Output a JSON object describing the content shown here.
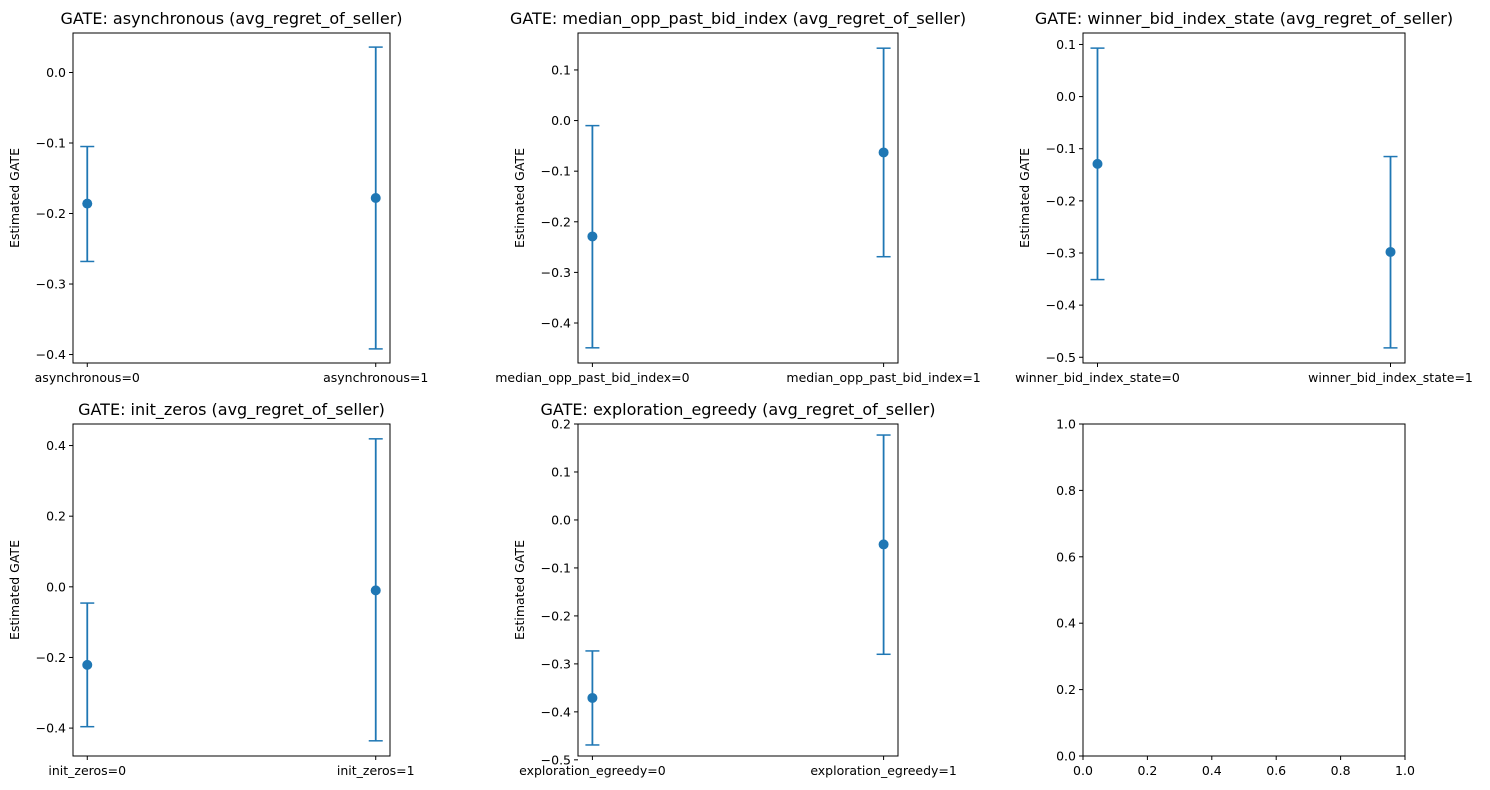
{
  "colors": {
    "marker": "#1f77b4",
    "axis": "#000000",
    "background": "#ffffff"
  },
  "chart_data": [
    {
      "type": "scatter",
      "error_bars": true,
      "title": "GATE: asynchronous (avg_regret_of_seller)",
      "ylabel": "Estimated GATE",
      "categories": [
        "asynchronous=0",
        "asynchronous=1"
      ],
      "values": [
        -0.186,
        -0.178
      ],
      "ci_low": [
        -0.268,
        -0.392
      ],
      "ci_high": [
        -0.105,
        0.036
      ],
      "ylim": [
        -0.412,
        0.056
      ],
      "yticks": [
        0.0,
        -0.1,
        -0.2,
        -0.3,
        -0.4
      ],
      "ytick_labels": [
        "0.0",
        "−0.1",
        "−0.2",
        "−0.3",
        "−0.4"
      ]
    },
    {
      "type": "scatter",
      "error_bars": true,
      "title": "GATE: median_opp_past_bid_index (avg_regret_of_seller)",
      "ylabel": "Estimated GATE",
      "categories": [
        "median_opp_past_bid_index=0",
        "median_opp_past_bid_index=1"
      ],
      "values": [
        -0.229,
        -0.063
      ],
      "ci_low": [
        -0.449,
        -0.269
      ],
      "ci_high": [
        -0.01,
        0.143
      ],
      "ylim": [
        -0.479,
        0.173
      ],
      "yticks": [
        0.1,
        0.0,
        -0.1,
        -0.2,
        -0.3,
        -0.4
      ],
      "ytick_labels": [
        "0.1",
        "0.0",
        "−0.1",
        "−0.2",
        "−0.3",
        "−0.4"
      ]
    },
    {
      "type": "scatter",
      "error_bars": true,
      "title": "GATE: winner_bid_index_state (avg_regret_of_seller)",
      "ylabel": "Estimated GATE",
      "categories": [
        "winner_bid_index_state=0",
        "winner_bid_index_state=1"
      ],
      "values": [
        -0.129,
        -0.298
      ],
      "ci_low": [
        -0.351,
        -0.482
      ],
      "ci_high": [
        0.093,
        -0.115
      ],
      "ylim": [
        -0.511,
        0.122
      ],
      "yticks": [
        0.1,
        0.0,
        -0.1,
        -0.2,
        -0.3,
        -0.4,
        -0.5
      ],
      "ytick_labels": [
        "0.1",
        "0.0",
        "−0.1",
        "−0.2",
        "−0.3",
        "−0.4",
        "−0.5"
      ]
    },
    {
      "type": "scatter",
      "error_bars": true,
      "title": "GATE: init_zeros (avg_regret_of_seller)",
      "ylabel": "Estimated GATE",
      "categories": [
        "init_zeros=0",
        "init_zeros=1"
      ],
      "values": [
        -0.221,
        -0.01
      ],
      "ci_low": [
        -0.396,
        -0.436
      ],
      "ci_high": [
        -0.046,
        0.419
      ],
      "ylim": [
        -0.479,
        0.461
      ],
      "yticks": [
        0.4,
        0.2,
        0.0,
        -0.2,
        -0.4
      ],
      "ytick_labels": [
        "0.4",
        "0.2",
        "0.0",
        "−0.2",
        "−0.4"
      ]
    },
    {
      "type": "scatter",
      "error_bars": true,
      "title": "GATE: exploration_egreedy (avg_regret_of_seller)",
      "ylabel": "Estimated GATE",
      "categories": [
        "exploration_egreedy=0",
        "exploration_egreedy=1"
      ],
      "values": [
        -0.371,
        -0.051
      ],
      "ci_low": [
        -0.469,
        -0.28
      ],
      "ci_high": [
        -0.273,
        0.177
      ],
      "ylim": [
        -0.492,
        0.2
      ],
      "yticks": [
        0.2,
        0.1,
        0.0,
        -0.1,
        -0.2,
        -0.3,
        -0.4,
        -0.5
      ],
      "ytick_labels": [
        "0.2",
        "0.1",
        "0.0",
        "−0.1",
        "−0.2",
        "−0.3",
        "−0.4",
        "−0.5"
      ]
    },
    {
      "type": "scatter",
      "empty": true,
      "title": "",
      "ylabel": "",
      "xlim": [
        0,
        1
      ],
      "ylim": [
        0,
        1
      ],
      "xticks": [
        "0.0",
        "0.2",
        "0.4",
        "0.6",
        "0.8",
        "1.0"
      ],
      "yticks": [
        "0.0",
        "0.2",
        "0.4",
        "0.6",
        "0.8",
        "1.0"
      ]
    }
  ]
}
